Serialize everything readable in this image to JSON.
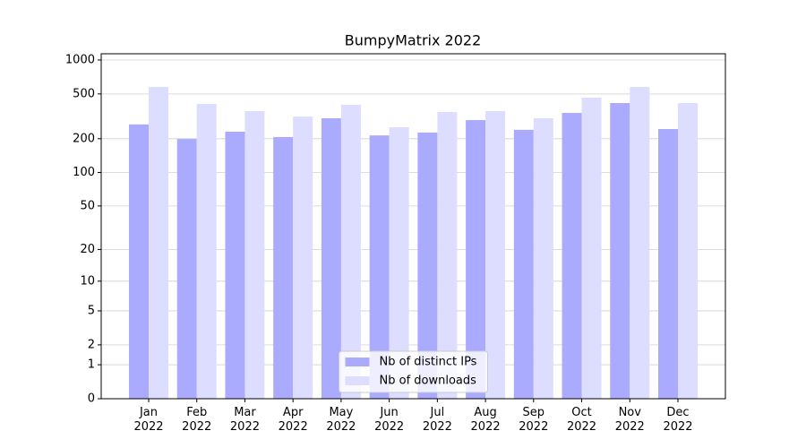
{
  "chart_data": {
    "type": "bar",
    "title": "BumpyMatrix 2022",
    "categories": [
      "Jan\n2022",
      "Feb\n2022",
      "Mar\n2022",
      "Apr\n2022",
      "May\n2022",
      "Jun\n2022",
      "Jul\n2022",
      "Aug\n2022",
      "Sep\n2022",
      "Oct\n2022",
      "Nov\n2022",
      "Dec\n2022"
    ],
    "series": [
      {
        "name": "Nb of distinct IPs",
        "color": "#aaaaff",
        "values": [
          268,
          199,
          231,
          207,
          304,
          214,
          227,
          293,
          240,
          339,
          415,
          244
        ]
      },
      {
        "name": "Nb of downloads",
        "color": "#ddddff",
        "values": [
          577,
          408,
          352,
          315,
          400,
          253,
          346,
          352,
          304,
          463,
          577,
          415
        ]
      }
    ],
    "yscale": "log1p",
    "ylim": [
      0,
      1136
    ],
    "yticks": [
      0,
      1,
      2,
      5,
      10,
      20,
      50,
      100,
      200,
      500,
      1000
    ],
    "grid": true,
    "legend": "lower center"
  }
}
